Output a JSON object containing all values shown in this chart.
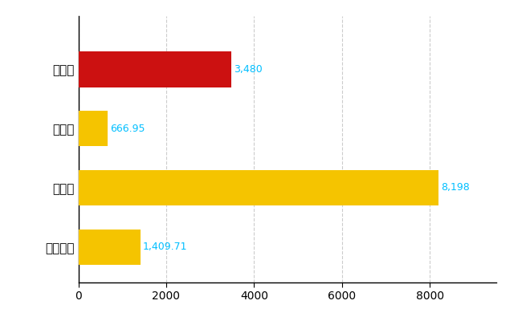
{
  "categories": [
    "上田市",
    "県平均",
    "県最大",
    "全国平均"
  ],
  "values": [
    3480,
    666.95,
    8198,
    1409.71
  ],
  "bar_colors": [
    "#CC1111",
    "#F5C400",
    "#F5C400",
    "#F5C400"
  ],
  "bar_labels": [
    "3,480",
    "666.95",
    "8,198",
    "1,409.71"
  ],
  "xlim": [
    0,
    9500
  ],
  "xticks": [
    0,
    2000,
    4000,
    6000,
    8000
  ],
  "background_color": "#ffffff",
  "grid_color": "#cccccc",
  "label_color": "#00BFFF",
  "label_fontsize": 9,
  "ylabel_fontsize": 11,
  "tick_fontsize": 10
}
